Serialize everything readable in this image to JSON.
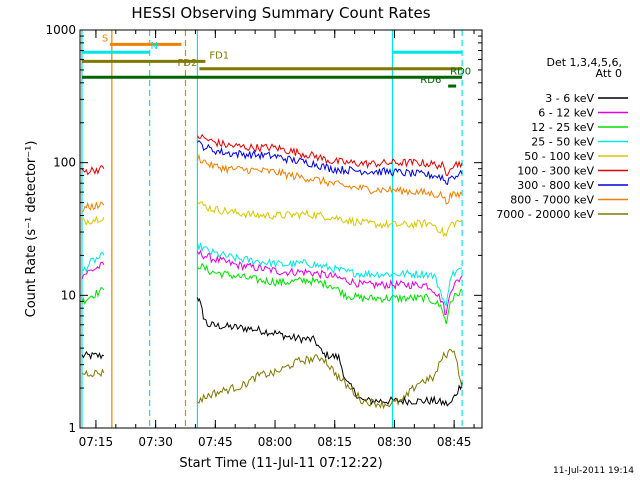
{
  "chart_data": {
    "type": "line",
    "title": "HESSI Observing Summary Count Rates",
    "xlabel": "Start Time (11-Jul-11 07:12:22)",
    "ylabel": "Count Rate (s⁻¹ detector⁻¹)",
    "x_range_min": [
      -1.0,
      100.0
    ],
    "ylim": [
      1,
      1000
    ],
    "yscale": "log",
    "x_ticks": [
      {
        "v": 3,
        "label": "07:15"
      },
      {
        "v": 18,
        "label": "07:30"
      },
      {
        "v": 33,
        "label": "07:45"
      },
      {
        "v": 48,
        "label": "08:00"
      },
      {
        "v": 63,
        "label": "08:15"
      },
      {
        "v": 78,
        "label": "08:30"
      },
      {
        "v": 93,
        "label": "08:45"
      }
    ],
    "y_ticks": [
      {
        "v": 1,
        "label": "1"
      },
      {
        "v": 10,
        "label": "10"
      },
      {
        "v": 100,
        "label": "100"
      },
      {
        "v": 1000,
        "label": "1000"
      }
    ],
    "legend": {
      "title_lines": [
        "Det 1,3,4,5,6,",
        "Att 0"
      ],
      "placement": "right",
      "entries": [
        {
          "label": "3 - 6 keV",
          "color": "#000000"
        },
        {
          "label": "6 - 12 keV",
          "color": "#e000e0"
        },
        {
          "label": "12 - 25 keV",
          "color": "#00e000"
        },
        {
          "label": "25 - 50 keV",
          "color": "#00e5e5"
        },
        {
          "label": "50 - 100 keV",
          "color": "#d8c800"
        },
        {
          "label": "100 - 300 keV",
          "color": "#e00000"
        },
        {
          "label": "300 - 800 keV",
          "color": "#0000e0"
        },
        {
          "label": "800 - 7000 keV",
          "color": "#f08000"
        },
        {
          "label": "7000 - 20000 keV",
          "color": "#807800"
        }
      ]
    },
    "series": [
      {
        "name": "3 - 6 keV",
        "color": "#000000",
        "segments": [
          [
            [
              -0.5,
              3.5
            ],
            [
              5,
              3.5
            ]
          ],
          [
            [
              28.5,
              10
            ],
            [
              29,
              9
            ],
            [
              30,
              7
            ],
            [
              31,
              6
            ],
            [
              36,
              5.8
            ],
            [
              42,
              5.6
            ],
            [
              48,
              5.2
            ],
            [
              52,
              4.8
            ],
            [
              58,
              4.6
            ],
            [
              60,
              3.6
            ],
            [
              64,
              3.4
            ],
            [
              66,
              2.2
            ],
            [
              70,
              1.6
            ],
            [
              73,
              1.6
            ],
            [
              88,
              1.6
            ],
            [
              92,
              1.5
            ],
            [
              95,
              2.2
            ]
          ]
        ]
      },
      {
        "name": "6 - 12 keV",
        "color": "#e000e0",
        "segments": [
          [
            [
              -0.5,
              14
            ],
            [
              1,
              15
            ],
            [
              3,
              16
            ],
            [
              5,
              17
            ]
          ],
          [
            [
              28.5,
              21
            ],
            [
              32,
              19
            ],
            [
              38,
              17
            ],
            [
              44,
              16
            ],
            [
              50,
              15
            ],
            [
              56,
              15
            ],
            [
              62,
              14
            ],
            [
              66,
              13
            ],
            [
              70,
              12
            ],
            [
              76,
              12
            ],
            [
              80,
              12
            ],
            [
              84,
              12
            ],
            [
              86,
              12
            ],
            [
              88,
              11
            ],
            [
              90,
              9
            ],
            [
              91,
              7
            ],
            [
              92,
              11
            ],
            [
              95,
              14
            ]
          ]
        ]
      },
      {
        "name": "12 - 25 keV",
        "color": "#00e000",
        "segments": [
          [
            [
              -0.5,
              9
            ],
            [
              2,
              10
            ],
            [
              5,
              11
            ]
          ],
          [
            [
              28.5,
              17
            ],
            [
              32,
              15
            ],
            [
              38,
              14
            ],
            [
              44,
              13
            ],
            [
              50,
              12.5
            ],
            [
              56,
              13
            ],
            [
              62,
              12
            ],
            [
              66,
              10
            ],
            [
              70,
              9.5
            ],
            [
              76,
              9.5
            ],
            [
              82,
              9.5
            ],
            [
              86,
              9.5
            ],
            [
              88,
              9
            ],
            [
              90,
              8
            ],
            [
              91,
              6
            ],
            [
              92,
              9
            ],
            [
              95,
              11
            ]
          ]
        ]
      },
      {
        "name": "25 - 50 keV",
        "color": "#00e5e5",
        "segments": [
          [
            [
              -0.5,
              15
            ],
            [
              2,
              18
            ],
            [
              5,
              20
            ]
          ],
          [
            [
              28.5,
              24
            ],
            [
              32,
              21
            ],
            [
              38,
              19
            ],
            [
              44,
              18
            ],
            [
              50,
              17
            ],
            [
              56,
              17.5
            ],
            [
              62,
              16
            ],
            [
              66,
              15
            ],
            [
              70,
              14.5
            ],
            [
              76,
              14.5
            ],
            [
              82,
              14.5
            ],
            [
              86,
              14.5
            ],
            [
              88,
              14
            ],
            [
              90,
              10
            ],
            [
              91,
              8
            ],
            [
              92,
              14
            ],
            [
              95,
              16
            ]
          ]
        ]
      },
      {
        "name": "50 - 100 keV",
        "color": "#d8c800",
        "segments": [
          [
            [
              -0.5,
              36
            ],
            [
              2,
              37
            ],
            [
              5,
              39
            ]
          ],
          [
            [
              28.5,
              50
            ],
            [
              32,
              45
            ],
            [
              38,
              42
            ],
            [
              44,
              40
            ],
            [
              50,
              40
            ],
            [
              56,
              41
            ],
            [
              62,
              39
            ],
            [
              66,
              37
            ],
            [
              70,
              35
            ],
            [
              76,
              34
            ],
            [
              82,
              34
            ],
            [
              86,
              35
            ],
            [
              88,
              34
            ],
            [
              90,
              30
            ],
            [
              91,
              28
            ],
            [
              92,
              34
            ],
            [
              95,
              37
            ]
          ]
        ]
      },
      {
        "name": "100 - 300 keV",
        "color": "#e00000",
        "segments": [
          [
            [
              -0.5,
              85
            ],
            [
              2,
              88
            ],
            [
              5,
              90
            ]
          ],
          [
            [
              28.5,
              160
            ],
            [
              32,
              145
            ],
            [
              36,
              135
            ],
            [
              42,
              130
            ],
            [
              48,
              130
            ],
            [
              52,
              122
            ],
            [
              58,
              112
            ],
            [
              62,
              103
            ],
            [
              66,
              100
            ],
            [
              72,
              98
            ],
            [
              78,
              100
            ],
            [
              84,
              100
            ],
            [
              88,
              97
            ],
            [
              90,
              95
            ],
            [
              91,
              80
            ],
            [
              92,
              95
            ],
            [
              95,
              100
            ]
          ]
        ]
      },
      {
        "name": "300 - 800 keV",
        "color": "#0000e0",
        "segments": [
          [
            [
              28.5,
              140
            ],
            [
              32,
              125
            ],
            [
              36,
              118
            ],
            [
              42,
              115
            ],
            [
              48,
              112
            ],
            [
              52,
              105
            ],
            [
              58,
              98
            ],
            [
              62,
              90
            ],
            [
              66,
              88
            ],
            [
              72,
              86
            ],
            [
              78,
              85
            ],
            [
              84,
              82
            ],
            [
              88,
              80
            ],
            [
              90,
              78
            ],
            [
              91,
              70
            ],
            [
              92,
              78
            ],
            [
              95,
              82
            ]
          ]
        ]
      },
      {
        "name": "800 - 7000 keV",
        "color": "#f08000",
        "segments": [
          [
            [
              -0.5,
              45
            ],
            [
              2,
              47
            ],
            [
              5,
              48
            ]
          ],
          [
            [
              28.5,
              110
            ],
            [
              32,
              95
            ],
            [
              36,
              90
            ],
            [
              42,
              88
            ],
            [
              48,
              85
            ],
            [
              52,
              80
            ],
            [
              58,
              75
            ],
            [
              62,
              70
            ],
            [
              66,
              66
            ],
            [
              72,
              63
            ],
            [
              78,
              62
            ],
            [
              84,
              60
            ],
            [
              88,
              58
            ],
            [
              90,
              57
            ],
            [
              91,
              50
            ],
            [
              92,
              56
            ],
            [
              95,
              58
            ]
          ]
        ]
      },
      {
        "name": "7000 - 20000 keV",
        "color": "#807800",
        "segments": [
          [
            [
              -0.5,
              2.6
            ],
            [
              5,
              2.6
            ]
          ],
          [
            [
              28.5,
              1.6
            ],
            [
              32,
              1.8
            ],
            [
              40,
              2.1
            ],
            [
              44,
              2.5
            ],
            [
              48,
              2.6
            ],
            [
              54,
              3.2
            ],
            [
              60,
              3.4
            ],
            [
              64,
              2.4
            ],
            [
              70,
              1.6
            ],
            [
              76,
              1.5
            ],
            [
              80,
              1.6
            ],
            [
              84,
              2.2
            ],
            [
              88,
              2.4
            ],
            [
              90,
              3.4
            ],
            [
              93,
              4.0
            ],
            [
              95,
              2.0
            ]
          ]
        ]
      }
    ],
    "state_bars": [
      {
        "label": "S",
        "color": "#f08000",
        "y": 780,
        "x_range": [
          6.5,
          24.5
        ],
        "label_x": 4.5
      },
      {
        "label": "N",
        "color": "#00e5e5",
        "y": 680,
        "x_range": [
          -0.5,
          16.5
        ],
        "label_x": 16.7
      },
      {
        "label": "N",
        "color": "#00e5e5",
        "y": 680,
        "x_range": [
          77.5,
          95
        ],
        "label_x": null
      },
      {
        "label": "FD1",
        "color": "#807800",
        "y": 580,
        "x_range": [
          -0.5,
          30.5
        ],
        "label_x": 31.5
      },
      {
        "label": "FD2",
        "color": "#807800",
        "y": 510,
        "x_range": [
          29,
          95
        ],
        "label_x": 23.5
      },
      {
        "label": "RD0",
        "color": "#006400",
        "y": 440,
        "x_range": [
          -0.5,
          95
        ],
        "label_x": 92.0
      },
      {
        "label": "RD6",
        "color": "#006400",
        "y": 378,
        "x_range": [
          91.5,
          93.5
        ],
        "label_x": 84.5
      }
    ],
    "vlines": [
      {
        "x": -0.5,
        "color": "#00e5e5",
        "style": "solid"
      },
      {
        "x": 7.0,
        "color": "#f08000",
        "style": "solid"
      },
      {
        "x": 16.5,
        "color": "#00e5e5",
        "style": "dashed"
      },
      {
        "x": 25.5,
        "color": "#f08000",
        "style": "dashed"
      },
      {
        "x": 28.5,
        "color": "#00e5e5",
        "style": "solid"
      },
      {
        "x": 77.5,
        "color": "#00e5e5",
        "style": "solid"
      },
      {
        "x": 95.0,
        "color": "#00e5e5",
        "style": "dashed"
      }
    ]
  },
  "footer": {
    "date_stamp": "11-Jul-2011 19:14"
  }
}
